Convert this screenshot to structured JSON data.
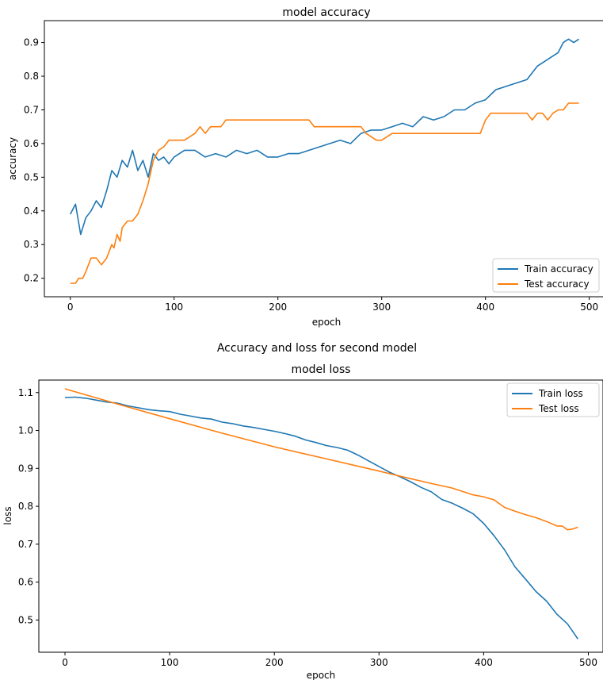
{
  "figure": {
    "suptitle": "Accuracy and loss for second model"
  },
  "chart_data": [
    {
      "type": "line",
      "title": "model accuracy",
      "xlabel": "epoch",
      "ylabel": "accuracy",
      "xlim": [
        -25,
        514
      ],
      "ylim": [
        0.145,
        0.965
      ],
      "xticks": [
        0,
        100,
        200,
        300,
        400,
        500
      ],
      "yticks": [
        0.2,
        0.3,
        0.4,
        0.5,
        0.6,
        0.7,
        0.8,
        0.9
      ],
      "grid": false,
      "legend_position": "lower right",
      "series": [
        {
          "name": "Train accuracy",
          "color": "#1f77b4",
          "x": [
            0,
            5,
            10,
            15,
            20,
            25,
            30,
            35,
            40,
            45,
            50,
            55,
            60,
            65,
            70,
            75,
            80,
            85,
            90,
            95,
            100,
            110,
            120,
            130,
            140,
            150,
            160,
            170,
            180,
            190,
            200,
            210,
            220,
            230,
            240,
            250,
            260,
            270,
            280,
            290,
            300,
            310,
            320,
            330,
            340,
            350,
            360,
            370,
            380,
            390,
            400,
            410,
            420,
            430,
            440,
            450,
            460,
            470,
            475,
            480,
            485,
            490
          ],
          "y": [
            0.39,
            0.42,
            0.33,
            0.38,
            0.4,
            0.43,
            0.41,
            0.46,
            0.52,
            0.5,
            0.55,
            0.53,
            0.58,
            0.52,
            0.55,
            0.5,
            0.57,
            0.55,
            0.56,
            0.54,
            0.56,
            0.58,
            0.58,
            0.56,
            0.57,
            0.56,
            0.58,
            0.57,
            0.58,
            0.56,
            0.56,
            0.57,
            0.57,
            0.58,
            0.59,
            0.6,
            0.61,
            0.6,
            0.63,
            0.64,
            0.64,
            0.65,
            0.66,
            0.65,
            0.68,
            0.67,
            0.68,
            0.7,
            0.7,
            0.72,
            0.73,
            0.76,
            0.77,
            0.78,
            0.79,
            0.83,
            0.85,
            0.87,
            0.9,
            0.91,
            0.9,
            0.91
          ]
        },
        {
          "name": "Test accuracy",
          "color": "#ff7f0e",
          "x": [
            0,
            5,
            8,
            12,
            15,
            20,
            25,
            30,
            35,
            40,
            42,
            45,
            48,
            50,
            55,
            60,
            65,
            70,
            75,
            80,
            85,
            90,
            95,
            100,
            110,
            120,
            125,
            130,
            135,
            140,
            145,
            150,
            160,
            170,
            180,
            190,
            200,
            210,
            220,
            230,
            235,
            240,
            250,
            260,
            270,
            280,
            285,
            290,
            295,
            300,
            310,
            320,
            330,
            340,
            350,
            360,
            370,
            380,
            390,
            395,
            400,
            405,
            410,
            420,
            430,
            440,
            445,
            450,
            455,
            460,
            465,
            470,
            475,
            480,
            485,
            490
          ],
          "y": [
            0.185,
            0.185,
            0.2,
            0.2,
            0.22,
            0.26,
            0.26,
            0.24,
            0.26,
            0.3,
            0.29,
            0.33,
            0.31,
            0.35,
            0.37,
            0.37,
            0.39,
            0.43,
            0.48,
            0.55,
            0.58,
            0.59,
            0.61,
            0.61,
            0.61,
            0.63,
            0.65,
            0.63,
            0.65,
            0.65,
            0.65,
            0.67,
            0.67,
            0.67,
            0.67,
            0.67,
            0.67,
            0.67,
            0.67,
            0.67,
            0.65,
            0.65,
            0.65,
            0.65,
            0.65,
            0.65,
            0.63,
            0.62,
            0.61,
            0.61,
            0.63,
            0.63,
            0.63,
            0.63,
            0.63,
            0.63,
            0.63,
            0.63,
            0.63,
            0.63,
            0.67,
            0.69,
            0.69,
            0.69,
            0.69,
            0.69,
            0.67,
            0.69,
            0.69,
            0.67,
            0.69,
            0.7,
            0.7,
            0.72,
            0.72,
            0.72
          ]
        }
      ]
    },
    {
      "type": "line",
      "title": "model loss",
      "xlabel": "epoch",
      "ylabel": "loss",
      "xlim": [
        -25,
        514
      ],
      "ylim": [
        0.415,
        1.133
      ],
      "xticks": [
        0,
        100,
        200,
        300,
        400,
        500
      ],
      "yticks": [
        0.5,
        0.6,
        0.7,
        0.8,
        0.9,
        1.0,
        1.1
      ],
      "grid": false,
      "legend_position": "upper right",
      "series": [
        {
          "name": "Train loss",
          "color": "#1f77b4",
          "x": [
            0,
            10,
            20,
            30,
            40,
            50,
            60,
            70,
            80,
            90,
            100,
            110,
            120,
            130,
            140,
            150,
            160,
            170,
            180,
            190,
            200,
            210,
            220,
            230,
            240,
            250,
            260,
            270,
            280,
            290,
            300,
            310,
            320,
            330,
            340,
            350,
            360,
            370,
            380,
            390,
            400,
            410,
            420,
            430,
            440,
            450,
            460,
            470,
            480,
            485,
            490
          ],
          "y": [
            1.087,
            1.088,
            1.085,
            1.08,
            1.075,
            1.072,
            1.065,
            1.06,
            1.055,
            1.052,
            1.05,
            1.043,
            1.038,
            1.033,
            1.03,
            1.022,
            1.018,
            1.012,
            1.008,
            1.003,
            0.998,
            0.992,
            0.985,
            0.975,
            0.968,
            0.96,
            0.955,
            0.948,
            0.935,
            0.92,
            0.905,
            0.89,
            0.878,
            0.865,
            0.85,
            0.838,
            0.818,
            0.808,
            0.795,
            0.78,
            0.755,
            0.722,
            0.685,
            0.64,
            0.608,
            0.575,
            0.55,
            0.515,
            0.49,
            0.47,
            0.45
          ]
        },
        {
          "name": "Test loss",
          "color": "#ff7f0e",
          "x": [
            0,
            50,
            100,
            150,
            200,
            250,
            300,
            330,
            350,
            370,
            390,
            400,
            410,
            420,
            430,
            440,
            450,
            460,
            470,
            475,
            480,
            485,
            490
          ],
          "y": [
            1.11,
            1.07,
            1.031,
            0.993,
            0.957,
            0.925,
            0.893,
            0.873,
            0.86,
            0.848,
            0.83,
            0.825,
            0.817,
            0.797,
            0.787,
            0.778,
            0.77,
            0.76,
            0.748,
            0.748,
            0.738,
            0.74,
            0.745
          ]
        }
      ]
    }
  ]
}
